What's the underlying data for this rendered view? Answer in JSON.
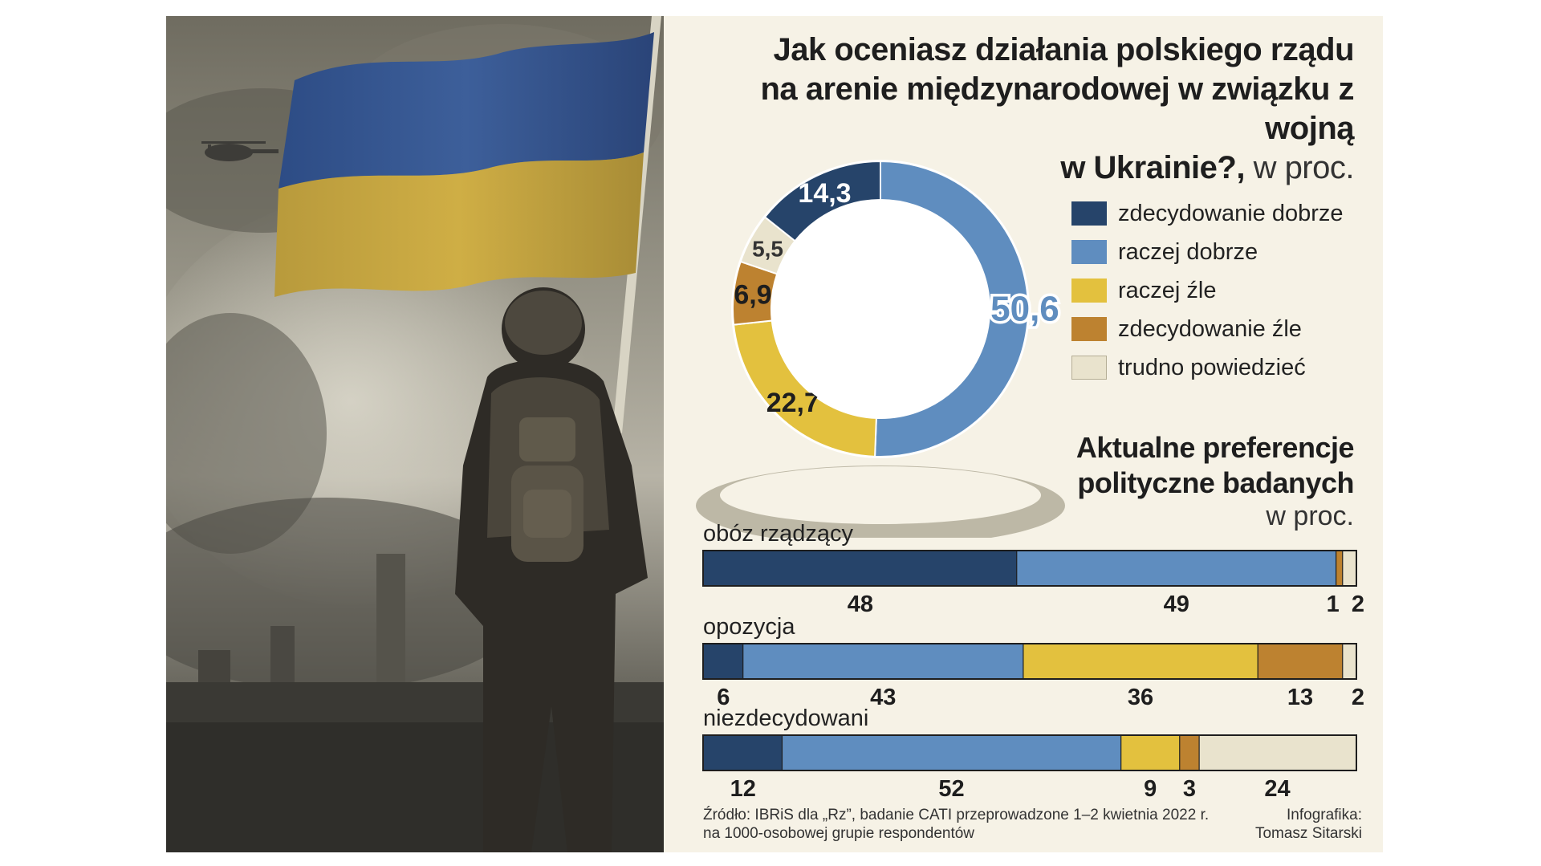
{
  "chart_data": [
    {
      "type": "pie",
      "title": "Jak oceniasz działania polskiego rządu na arenie międzynarodowej w związku z wojną w Ukrainie?",
      "unit": "w proc.",
      "categories": [
        "zdecydowanie dobrze",
        "raczej dobrze",
        "raczej źle",
        "zdecydowanie źle",
        "trudno powiedzieć"
      ],
      "values": [
        14.3,
        50.6,
        22.7,
        6.9,
        5.5
      ],
      "value_labels": [
        "14,3",
        "50,6",
        "22,7",
        "6,9",
        "5,5"
      ],
      "colors": [
        "#26446a",
        "#5f8dbf",
        "#e3c13e",
        "#bd8230",
        "#e9e3cd"
      ],
      "legend": "right"
    },
    {
      "type": "bar",
      "orientation": "horizontal",
      "stacked": true,
      "title": "Aktualne preferencje polityczne badanych",
      "unit": "w proc.",
      "series_order": [
        "zdecydowanie dobrze",
        "raczej dobrze",
        "raczej źle",
        "zdecydowanie źle",
        "trudno powiedzieć"
      ],
      "groups": [
        {
          "label": "obóz rządzący",
          "values": [
            48,
            49,
            0,
            1,
            2
          ],
          "value_labels": [
            "48",
            "49",
            "",
            "1",
            "2"
          ]
        },
        {
          "label": "opozycja",
          "values": [
            6,
            43,
            36,
            13,
            2
          ],
          "value_labels": [
            "6",
            "43",
            "36",
            "13",
            "2"
          ]
        },
        {
          "label": "niezdecydowani",
          "values": [
            12,
            52,
            9,
            3,
            24
          ],
          "value_labels": [
            "12",
            "52",
            "9",
            "3",
            "24"
          ]
        }
      ]
    }
  ],
  "header": {
    "title_line1": "Jak oceniasz działania polskiego rządu",
    "title_line2": "na arenie międzynarodowej w związku z wojną",
    "title_line3": "w Ukrainie?,",
    "title_unit": "w proc."
  },
  "preferences": {
    "title_line1": "Aktualne preferencje",
    "title_line2": "polityczne badanych",
    "unit": "w proc."
  },
  "footer": {
    "source_line1": "Źródło: IBRiS dla „Rz”, badanie CATI przeprowadzone 1–2 kwietnia 2022 r.",
    "source_line2": "na 1000-osobowej grupie respondentów",
    "credit_line1": "Infografika:",
    "credit_line2": "Tomasz Sitarski"
  },
  "illustration": {
    "description_icon": "soldier-with-ukrainian-flag-illustration",
    "flag_colors": [
      "#2f4f8f",
      "#c9a736"
    ]
  }
}
